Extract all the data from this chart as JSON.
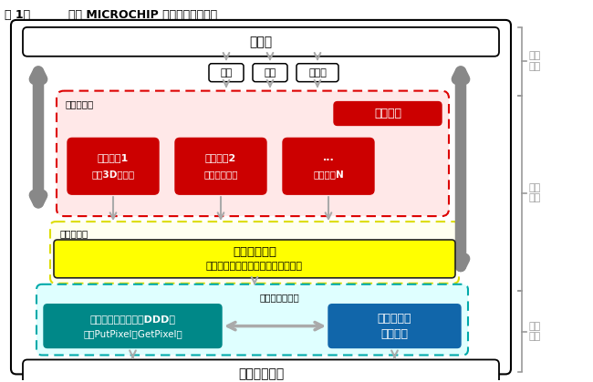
{
  "title_left": "图 1：",
  "title_right": "使用 MICROCHIP 图形库的典型系统",
  "bg_color": "#ffffff",
  "app_layer_text": "应用层",
  "input_boxes": [
    "鼠标",
    "键盘",
    "触摸屏"
  ],
  "obj_layer_label": "图形对象层",
  "obj_layer_bg": "#ffe8e8",
  "obj_layer_border": "#dd0000",
  "msg_box_text": "消息接口",
  "msg_box_bg": "#cc0000",
  "draw_func_boxes": [
    [
      "绘图函数1",
      "（即3D按钮）"
    ],
    [
      "绘图函数2",
      "（即滑度条）"
    ],
    [
      "...",
      "绘图函数N"
    ]
  ],
  "draw_func_bg": "#cc0000",
  "prim_layer_label": "图形元素层",
  "prim_layer_bg": "#fffff0",
  "prim_layer_border": "#dddd00",
  "prim_inner_text1": "图形元素函数",
  "prim_inner_text2": "（非加速线、圆、条和输出文本等）",
  "prim_inner_bg": "#ffff00",
  "hw_layer_label": "硬件驱动程序层",
  "hw_layer_bg": "#dfffff",
  "hw_layer_border": "#00aaaa",
  "display_box_text1": "显示设备驱动程序（DDD）",
  "display_box_text2": "（即PutPixel和GetPixel）",
  "display_box_bg": "#008888",
  "accel_box_text1": "图形加速器",
  "accel_box_text2": "（可选）",
  "accel_box_bg": "#1166aa",
  "gfx_module_text": "图形显示模块",
  "side_label1": "应用\n相关",
  "side_label2": "通用\n模块",
  "side_label3": "设备\n相关",
  "side_label_color": "#999999",
  "arrow_gray": "#aaaaaa",
  "arrow_dark": "#888888",
  "outer_box_color": "#000000"
}
